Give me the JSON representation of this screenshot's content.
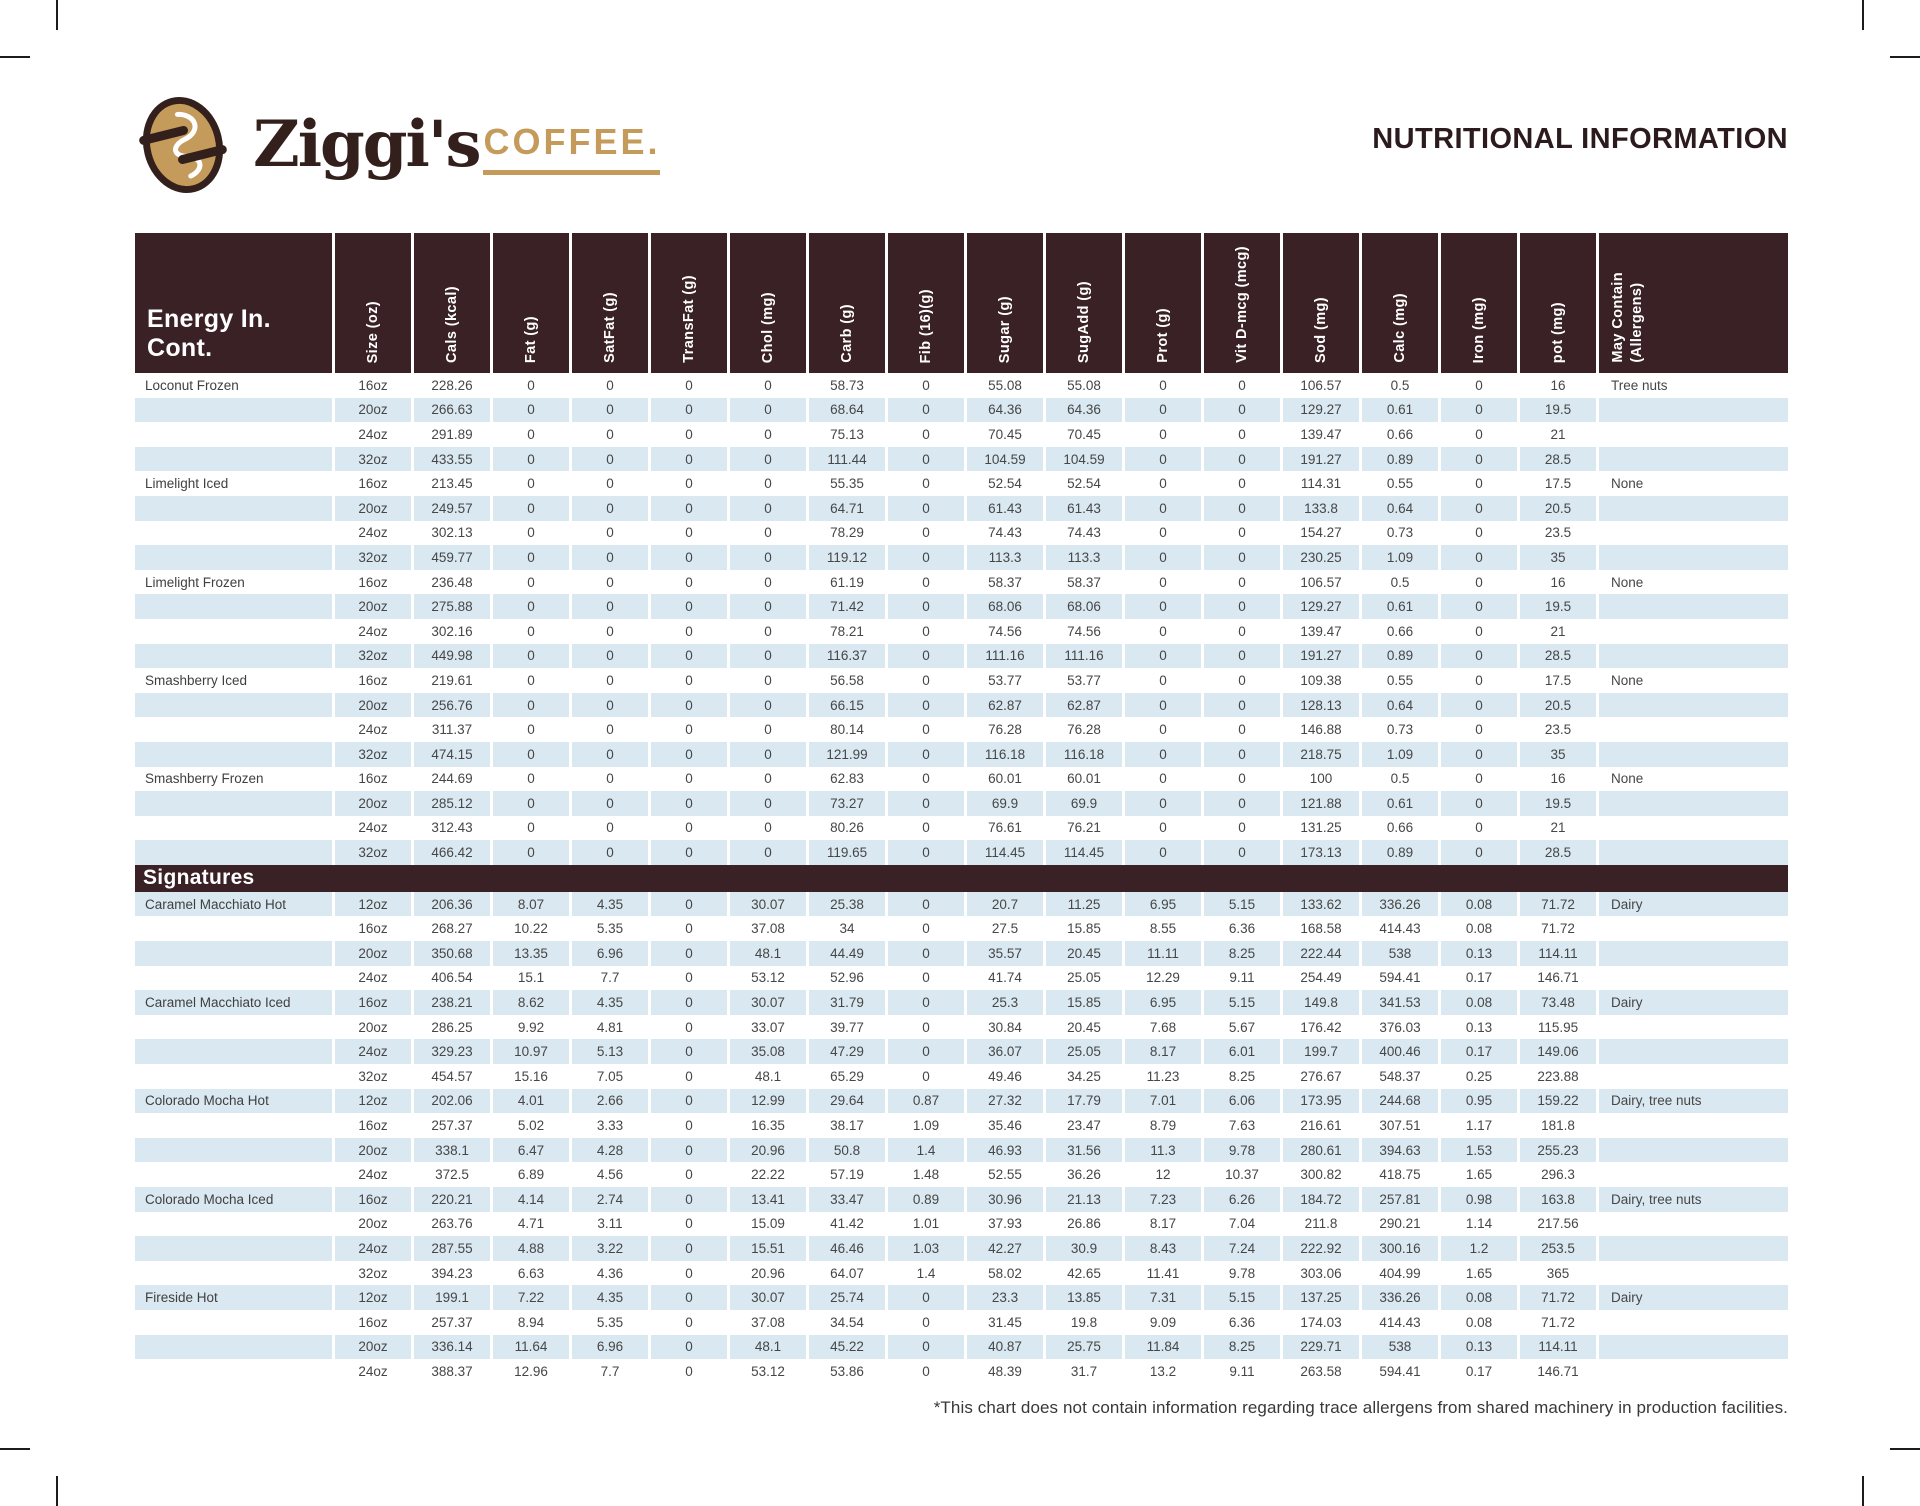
{
  "brand": {
    "script": "Ziggi's",
    "word": "COFFEE."
  },
  "page_title": "NUTRITIONAL INFORMATION",
  "footnote": "*This chart does not contain information regarding trace allergens from shared machinery in production facilities.",
  "colors": {
    "dark_brown": "#3A2125",
    "gold": "#C49B5B",
    "stripe_blue": "#D9E8F1"
  },
  "table": {
    "corner_header": "Energy In. Cont.",
    "column_keys": [
      "size",
      "cals",
      "fat",
      "satfat",
      "transfat",
      "chol",
      "carb",
      "fib",
      "sugar",
      "sugadd",
      "prot",
      "vitd",
      "sod",
      "calc",
      "iron",
      "pot"
    ],
    "columns": [
      "Size (oz)",
      "Cals (kcal)",
      "Fat (g)",
      "SatFat (g)",
      "TransFat (g)",
      "Chol (mg)",
      "Carb (g)",
      "Fib (16)(g)",
      "Sugar (g)",
      "SugAdd (g)",
      "Prot (g)",
      "Vit D-mcg (mcg)",
      "Sod (mg)",
      "Calc (mg)",
      "Iron (mg)",
      "pot (mg)"
    ],
    "allergen_header": [
      "May Contain",
      "(Allergens)"
    ],
    "blocks": [
      {
        "name": "Loconut Frozen",
        "allergen": "Tree nuts",
        "rows": [
          [
            "16oz",
            "228.26",
            "0",
            "0",
            "0",
            "0",
            "58.73",
            "0",
            "55.08",
            "55.08",
            "0",
            "0",
            "106.57",
            "0.5",
            "0",
            "16"
          ],
          [
            "20oz",
            "266.63",
            "0",
            "0",
            "0",
            "0",
            "68.64",
            "0",
            "64.36",
            "64.36",
            "0",
            "0",
            "129.27",
            "0.61",
            "0",
            "19.5"
          ],
          [
            "24oz",
            "291.89",
            "0",
            "0",
            "0",
            "0",
            "75.13",
            "0",
            "70.45",
            "70.45",
            "0",
            "0",
            "139.47",
            "0.66",
            "0",
            "21"
          ],
          [
            "32oz",
            "433.55",
            "0",
            "0",
            "0",
            "0",
            "111.44",
            "0",
            "104.59",
            "104.59",
            "0",
            "0",
            "191.27",
            "0.89",
            "0",
            "28.5"
          ]
        ]
      },
      {
        "name": "Limelight Iced",
        "allergen": "None",
        "rows": [
          [
            "16oz",
            "213.45",
            "0",
            "0",
            "0",
            "0",
            "55.35",
            "0",
            "52.54",
            "52.54",
            "0",
            "0",
            "114.31",
            "0.55",
            "0",
            "17.5"
          ],
          [
            "20oz",
            "249.57",
            "0",
            "0",
            "0",
            "0",
            "64.71",
            "0",
            "61.43",
            "61.43",
            "0",
            "0",
            "133.8",
            "0.64",
            "0",
            "20.5"
          ],
          [
            "24oz",
            "302.13",
            "0",
            "0",
            "0",
            "0",
            "78.29",
            "0",
            "74.43",
            "74.43",
            "0",
            "0",
            "154.27",
            "0.73",
            "0",
            "23.5"
          ],
          [
            "32oz",
            "459.77",
            "0",
            "0",
            "0",
            "0",
            "119.12",
            "0",
            "113.3",
            "113.3",
            "0",
            "0",
            "230.25",
            "1.09",
            "0",
            "35"
          ]
        ]
      },
      {
        "name": "Limelight Frozen",
        "allergen": "None",
        "rows": [
          [
            "16oz",
            "236.48",
            "0",
            "0",
            "0",
            "0",
            "61.19",
            "0",
            "58.37",
            "58.37",
            "0",
            "0",
            "106.57",
            "0.5",
            "0",
            "16"
          ],
          [
            "20oz",
            "275.88",
            "0",
            "0",
            "0",
            "0",
            "71.42",
            "0",
            "68.06",
            "68.06",
            "0",
            "0",
            "129.27",
            "0.61",
            "0",
            "19.5"
          ],
          [
            "24oz",
            "302.16",
            "0",
            "0",
            "0",
            "0",
            "78.21",
            "0",
            "74.56",
            "74.56",
            "0",
            "0",
            "139.47",
            "0.66",
            "0",
            "21"
          ],
          [
            "32oz",
            "449.98",
            "0",
            "0",
            "0",
            "0",
            "116.37",
            "0",
            "111.16",
            "111.16",
            "0",
            "0",
            "191.27",
            "0.89",
            "0",
            "28.5"
          ]
        ]
      },
      {
        "name": "Smashberry Iced",
        "allergen": "None",
        "rows": [
          [
            "16oz",
            "219.61",
            "0",
            "0",
            "0",
            "0",
            "56.58",
            "0",
            "53.77",
            "53.77",
            "0",
            "0",
            "109.38",
            "0.55",
            "0",
            "17.5"
          ],
          [
            "20oz",
            "256.76",
            "0",
            "0",
            "0",
            "0",
            "66.15",
            "0",
            "62.87",
            "62.87",
            "0",
            "0",
            "128.13",
            "0.64",
            "0",
            "20.5"
          ],
          [
            "24oz",
            "311.37",
            "0",
            "0",
            "0",
            "0",
            "80.14",
            "0",
            "76.28",
            "76.28",
            "0",
            "0",
            "146.88",
            "0.73",
            "0",
            "23.5"
          ],
          [
            "32oz",
            "474.15",
            "0",
            "0",
            "0",
            "0",
            "121.99",
            "0",
            "116.18",
            "116.18",
            "0",
            "0",
            "218.75",
            "1.09",
            "0",
            "35"
          ]
        ]
      },
      {
        "name": "Smashberry Frozen",
        "allergen": "None",
        "rows": [
          [
            "16oz",
            "244.69",
            "0",
            "0",
            "0",
            "0",
            "62.83",
            "0",
            "60.01",
            "60.01",
            "0",
            "0",
            "100",
            "0.5",
            "0",
            "16"
          ],
          [
            "20oz",
            "285.12",
            "0",
            "0",
            "0",
            "0",
            "73.27",
            "0",
            "69.9",
            "69.9",
            "0",
            "0",
            "121.88",
            "0.61",
            "0",
            "19.5"
          ],
          [
            "24oz",
            "312.43",
            "0",
            "0",
            "0",
            "0",
            "80.26",
            "0",
            "76.61",
            "76.21",
            "0",
            "0",
            "131.25",
            "0.66",
            "0",
            "21"
          ],
          [
            "32oz",
            "466.42",
            "0",
            "0",
            "0",
            "0",
            "119.65",
            "0",
            "114.45",
            "114.45",
            "0",
            "0",
            "173.13",
            "0.89",
            "0",
            "28.5"
          ]
        ]
      },
      {
        "band": "Signatures"
      },
      {
        "name": "Caramel Macchiato Hot",
        "allergen": "Dairy",
        "rows": [
          [
            "12oz",
            "206.36",
            "8.07",
            "4.35",
            "0",
            "30.07",
            "25.38",
            "0",
            "20.7",
            "11.25",
            "6.95",
            "5.15",
            "133.62",
            "336.26",
            "0.08",
            "71.72"
          ],
          [
            "16oz",
            "268.27",
            "10.22",
            "5.35",
            "0",
            "37.08",
            "34",
            "0",
            "27.5",
            "15.85",
            "8.55",
            "6.36",
            "168.58",
            "414.43",
            "0.08",
            "71.72"
          ],
          [
            "20oz",
            "350.68",
            "13.35",
            "6.96",
            "0",
            "48.1",
            "44.49",
            "0",
            "35.57",
            "20.45",
            "11.11",
            "8.25",
            "222.44",
            "538",
            "0.13",
            "114.11"
          ],
          [
            "24oz",
            "406.54",
            "15.1",
            "7.7",
            "0",
            "53.12",
            "52.96",
            "0",
            "41.74",
            "25.05",
            "12.29",
            "9.11",
            "254.49",
            "594.41",
            "0.17",
            "146.71"
          ]
        ]
      },
      {
        "name": "Caramel Macchiato Iced",
        "allergen": "Dairy",
        "rows": [
          [
            "16oz",
            "238.21",
            "8.62",
            "4.35",
            "0",
            "30.07",
            "31.79",
            "0",
            "25.3",
            "15.85",
            "6.95",
            "5.15",
            "149.8",
            "341.53",
            "0.08",
            "73.48"
          ],
          [
            "20oz",
            "286.25",
            "9.92",
            "4.81",
            "0",
            "33.07",
            "39.77",
            "0",
            "30.84",
            "20.45",
            "7.68",
            "5.67",
            "176.42",
            "376.03",
            "0.13",
            "115.95"
          ],
          [
            "24oz",
            "329.23",
            "10.97",
            "5.13",
            "0",
            "35.08",
            "47.29",
            "0",
            "36.07",
            "25.05",
            "8.17",
            "6.01",
            "199.7",
            "400.46",
            "0.17",
            "149.06"
          ],
          [
            "32oz",
            "454.57",
            "15.16",
            "7.05",
            "0",
            "48.1",
            "65.29",
            "0",
            "49.46",
            "34.25",
            "11.23",
            "8.25",
            "276.67",
            "548.37",
            "0.25",
            "223.88"
          ]
        ]
      },
      {
        "name": "Colorado Mocha Hot",
        "allergen": "Dairy, tree nuts",
        "rows": [
          [
            "12oz",
            "202.06",
            "4.01",
            "2.66",
            "0",
            "12.99",
            "29.64",
            "0.87",
            "27.32",
            "17.79",
            "7.01",
            "6.06",
            "173.95",
            "244.68",
            "0.95",
            "159.22"
          ],
          [
            "16oz",
            "257.37",
            "5.02",
            "3.33",
            "0",
            "16.35",
            "38.17",
            "1.09",
            "35.46",
            "23.47",
            "8.79",
            "7.63",
            "216.61",
            "307.51",
            "1.17",
            "181.8"
          ],
          [
            "20oz",
            "338.1",
            "6.47",
            "4.28",
            "0",
            "20.96",
            "50.8",
            "1.4",
            "46.93",
            "31.56",
            "11.3",
            "9.78",
            "280.61",
            "394.63",
            "1.53",
            "255.23"
          ],
          [
            "24oz",
            "372.5",
            "6.89",
            "4.56",
            "0",
            "22.22",
            "57.19",
            "1.48",
            "52.55",
            "36.26",
            "12",
            "10.37",
            "300.82",
            "418.75",
            "1.65",
            "296.3"
          ]
        ]
      },
      {
        "name": "Colorado Mocha Iced",
        "allergen": "Dairy, tree nuts",
        "rows": [
          [
            "16oz",
            "220.21",
            "4.14",
            "2.74",
            "0",
            "13.41",
            "33.47",
            "0.89",
            "30.96",
            "21.13",
            "7.23",
            "6.26",
            "184.72",
            "257.81",
            "0.98",
            "163.8"
          ],
          [
            "20oz",
            "263.76",
            "4.71",
            "3.11",
            "0",
            "15.09",
            "41.42",
            "1.01",
            "37.93",
            "26.86",
            "8.17",
            "7.04",
            "211.8",
            "290.21",
            "1.14",
            "217.56"
          ],
          [
            "24oz",
            "287.55",
            "4.88",
            "3.22",
            "0",
            "15.51",
            "46.46",
            "1.03",
            "42.27",
            "30.9",
            "8.43",
            "7.24",
            "222.92",
            "300.16",
            "1.2",
            "253.5"
          ],
          [
            "32oz",
            "394.23",
            "6.63",
            "4.36",
            "0",
            "20.96",
            "64.07",
            "1.4",
            "58.02",
            "42.65",
            "11.41",
            "9.78",
            "303.06",
            "404.99",
            "1.65",
            "365"
          ]
        ]
      },
      {
        "name": "Fireside Hot",
        "allergen": "Dairy",
        "rows": [
          [
            "12oz",
            "199.1",
            "7.22",
            "4.35",
            "0",
            "30.07",
            "25.74",
            "0",
            "23.3",
            "13.85",
            "7.31",
            "5.15",
            "137.25",
            "336.26",
            "0.08",
            "71.72"
          ],
          [
            "16oz",
            "257.37",
            "8.94",
            "5.35",
            "0",
            "37.08",
            "34.54",
            "0",
            "31.45",
            "19.8",
            "9.09",
            "6.36",
            "174.03",
            "414.43",
            "0.08",
            "71.72"
          ],
          [
            "20oz",
            "336.14",
            "11.64",
            "6.96",
            "0",
            "48.1",
            "45.22",
            "0",
            "40.87",
            "25.75",
            "11.84",
            "8.25",
            "229.71",
            "538",
            "0.13",
            "114.11"
          ],
          [
            "24oz",
            "388.37",
            "12.96",
            "7.7",
            "0",
            "53.12",
            "53.86",
            "0",
            "48.39",
            "31.7",
            "13.2",
            "9.11",
            "263.58",
            "594.41",
            "0.17",
            "146.71"
          ]
        ]
      }
    ]
  }
}
